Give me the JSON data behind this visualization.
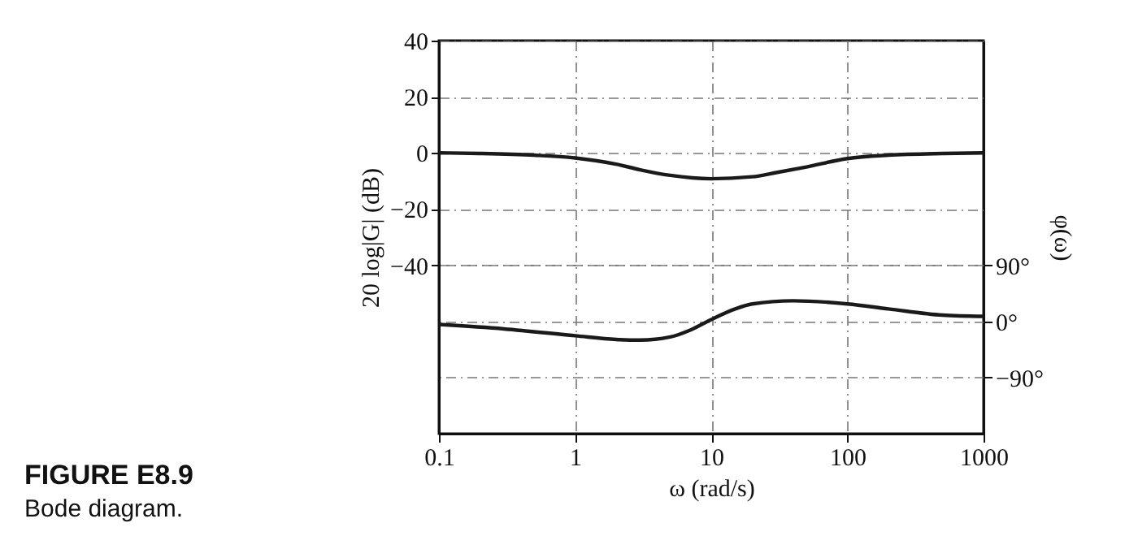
{
  "chart_data": {
    "type": "line",
    "xlabel": "ω (rad/s)",
    "ylabel": "20 log|G| (dB)",
    "y2label": "φ(ω)",
    "annotations": [
      "FIGURE E8.9",
      "Bode diagram."
    ],
    "log": "x",
    "grid": true,
    "xlim": [
      0.1,
      1000
    ],
    "xticks": [
      0.1,
      1,
      10,
      100,
      1000
    ],
    "ylim": [
      -100,
      40
    ],
    "yticks": [
      40,
      20,
      0,
      -20,
      -40
    ],
    "y2lim": [
      -180,
      450
    ],
    "y2ticks": [
      {
        "value": 90,
        "label": "90°"
      },
      {
        "value": 0,
        "label": "0°"
      },
      {
        "value": -90,
        "label": "−90°"
      }
    ],
    "series": [
      {
        "color": "#1a1a1a",
        "x": [
          0.1,
          0.2,
          0.5,
          1,
          2,
          3,
          5,
          10,
          20,
          30,
          50,
          100,
          200,
          500,
          1000
        ],
        "values": [
          0,
          -0.2,
          -0.8,
          -1.8,
          -4,
          -6,
          -8,
          -9.2,
          -8.5,
          -7,
          -5,
          -2,
          -0.8,
          -0.2,
          0
        ]
      },
      {
        "axis": "y2",
        "color": "#1a1a1a",
        "x": [
          0.1,
          0.3,
          1,
          2,
          3,
          5,
          7,
          10,
          15,
          20,
          40,
          100,
          200,
          500,
          1000
        ],
        "values": [
          -5,
          -12,
          -23,
          -29,
          -30,
          -25,
          -14,
          3,
          20,
          28,
          33,
          28,
          20,
          10,
          8
        ]
      }
    ]
  }
}
